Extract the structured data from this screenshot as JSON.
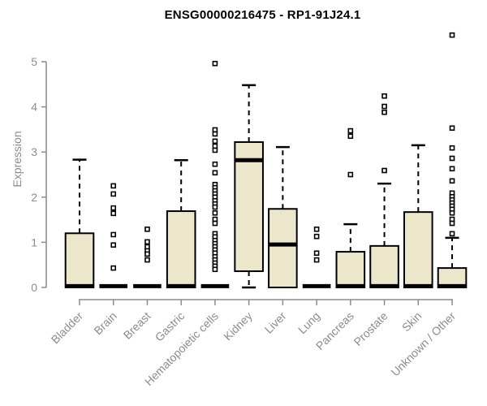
{
  "chart_data": {
    "type": "boxplot",
    "title": "ENSG00000216475 - RP1-91J24.1",
    "ylabel": "Expression",
    "xlabel": "",
    "ylim": [
      0,
      5
    ],
    "yticks": [
      0,
      1,
      2,
      3,
      4,
      5
    ],
    "grid": false,
    "legend": "none",
    "colors": {
      "box_fill": "#ECE7CB",
      "box_border": "#000000",
      "median": "#000000",
      "whisker": "#000000",
      "outlier_fill": "#ffffff",
      "outlier_border": "#000000",
      "axis": "#8c8c8c",
      "tick_label": "#8c8c8c",
      "title": "#000000"
    },
    "categories": [
      "Bladder",
      "Brain",
      "Breast",
      "Gastric",
      "Hematopoietic cells",
      "Kidney",
      "Liver",
      "Lung",
      "Pancreas",
      "Prostate",
      "Skin",
      "Unknown / Other"
    ],
    "boxes": [
      {
        "label": "Bladder",
        "whisker_low": 0,
        "q1": 0,
        "median": 0.03,
        "q3": 1.2,
        "whisker_high": 2.83,
        "outliers": []
      },
      {
        "label": "Brain",
        "whisker_low": 0,
        "q1": 0,
        "median": 0.03,
        "q3": 0,
        "whisker_high": 0,
        "outliers": [
          2.25,
          2.07,
          1.76,
          1.64,
          1.17,
          0.94,
          0.43
        ]
      },
      {
        "label": "Breast",
        "whisker_low": 0,
        "q1": 0,
        "median": 0.03,
        "q3": 0,
        "whisker_high": 0,
        "outliers": [
          1.29,
          1.01,
          0.9,
          0.81,
          0.74,
          0.61
        ]
      },
      {
        "label": "Gastric",
        "whisker_low": 0,
        "q1": 0,
        "median": 0.03,
        "q3": 1.69,
        "whisker_high": 2.82,
        "outliers": []
      },
      {
        "label": "Hematopoietic cells",
        "whisker_low": 0,
        "q1": 0,
        "median": 0.03,
        "q3": 0,
        "whisker_high": 0,
        "outliers": [
          4.96,
          3.49,
          3.4,
          3.24,
          3.13,
          3.04,
          2.73,
          2.54,
          2.28,
          2.21,
          2.14,
          2.07,
          2.0,
          1.92,
          1.85,
          1.78,
          1.65,
          1.51,
          1.42,
          1.19,
          1.12,
          1.04,
          0.97,
          0.9,
          0.83,
          0.76,
          0.68,
          0.61,
          0.54,
          0.47,
          0.4
        ]
      },
      {
        "label": "Kidney",
        "whisker_low": 0,
        "q1": 0.36,
        "median": 2.82,
        "q3": 3.22,
        "whisker_high": 4.48,
        "outliers": []
      },
      {
        "label": "Liver",
        "whisker_low": 0,
        "q1": 0,
        "median": 0.95,
        "q3": 1.74,
        "whisker_high": 3.11,
        "outliers": []
      },
      {
        "label": "Lung",
        "whisker_low": 0,
        "q1": 0,
        "median": 0.03,
        "q3": 0,
        "whisker_high": 0,
        "outliers": [
          1.29,
          1.13,
          0.76,
          0.61
        ]
      },
      {
        "label": "Pancreas",
        "whisker_low": 0,
        "q1": 0,
        "median": 0.03,
        "q3": 0.79,
        "whisker_high": 1.4,
        "outliers": [
          3.47,
          3.35,
          2.5
        ]
      },
      {
        "label": "Prostate",
        "whisker_low": 0,
        "q1": 0,
        "median": 0.03,
        "q3": 0.92,
        "whisker_high": 2.3,
        "outliers": [
          4.24,
          4.01,
          3.88,
          2.59
        ]
      },
      {
        "label": "Skin",
        "whisker_low": 0,
        "q1": 0,
        "median": 0.03,
        "q3": 1.67,
        "whisker_high": 3.15,
        "outliers": []
      },
      {
        "label": "Unknown / Other",
        "whisker_low": 0,
        "q1": 0,
        "median": 0.03,
        "q3": 0.43,
        "whisker_high": 1.1,
        "outliers": [
          5.59,
          3.53,
          3.09,
          2.86,
          2.63,
          2.36,
          2.09,
          2.01,
          1.94,
          1.87,
          1.8,
          1.73,
          1.65,
          1.51,
          1.42,
          1.19
        ]
      }
    ]
  }
}
